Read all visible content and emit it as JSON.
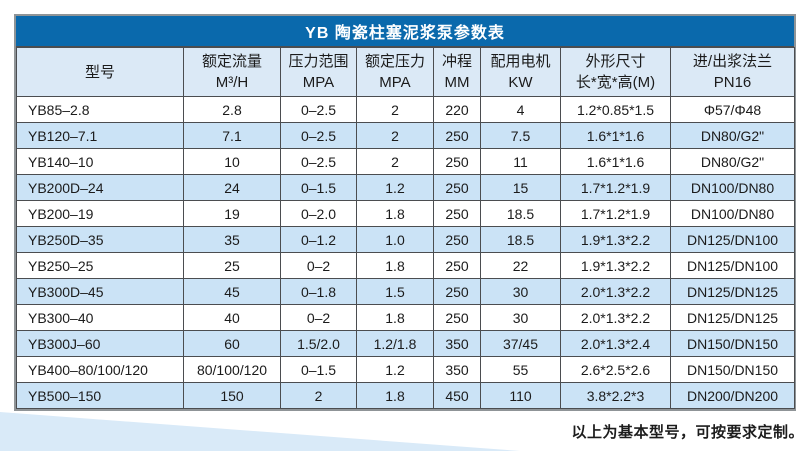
{
  "table": {
    "title": "YB 陶瓷柱塞泥浆泵参数表",
    "colors": {
      "title_bg": "#0a69ac",
      "title_text": "#ffffff",
      "header_bg": "#dbe9f6",
      "row_alt_bg": "#cbe3f6",
      "row_bg": "#ffffff",
      "border_inner": "#4b4d50",
      "border_outer": "#8f9497",
      "wedge_bg": "#d9eaf8",
      "text": "#1b1b1b"
    },
    "columns": [
      {
        "line1": "型号",
        "line2": ""
      },
      {
        "line1": "额定流量",
        "line2": "M³/H"
      },
      {
        "line1": "压力范围",
        "line2": "MPA"
      },
      {
        "line1": "额定压力",
        "line2": "MPA"
      },
      {
        "line1": "冲程",
        "line2": "MM"
      },
      {
        "line1": "配用电机",
        "line2": "KW"
      },
      {
        "line1": "外形尺寸",
        "line2": "长*宽*高(M)"
      },
      {
        "line1": "进/出浆法兰",
        "line2": "PN16"
      }
    ],
    "rows": [
      [
        "YB85–2.8",
        "2.8",
        "0–2.5",
        "2",
        "220",
        "4",
        "1.2*0.85*1.5",
        "Φ57/Φ48"
      ],
      [
        "YB120–7.1",
        "7.1",
        "0–2.5",
        "2",
        "250",
        "7.5",
        "1.6*1*1.6",
        "DN80/G2\""
      ],
      [
        "YB140–10",
        "10",
        "0–2.5",
        "2",
        "250",
        "11",
        "1.6*1*1.6",
        "DN80/G2\""
      ],
      [
        "YB200D–24",
        "24",
        "0–1.5",
        "1.2",
        "250",
        "15",
        "1.7*1.2*1.9",
        "DN100/DN80"
      ],
      [
        "YB200–19",
        "19",
        "0–2.0",
        "1.8",
        "250",
        "18.5",
        "1.7*1.2*1.9",
        "DN100/DN80"
      ],
      [
        "YB250D–35",
        "35",
        "0–1.2",
        "1.0",
        "250",
        "18.5",
        "1.9*1.3*2.2",
        "DN125/DN100"
      ],
      [
        "YB250–25",
        "25",
        "0–2",
        "1.8",
        "250",
        "22",
        "1.9*1.3*2.2",
        "DN125/DN100"
      ],
      [
        "YB300D–45",
        "45",
        "0–1.8",
        "1.5",
        "250",
        "30",
        "2.0*1.3*2.2",
        "DN125/DN125"
      ],
      [
        "YB300–40",
        "40",
        "0–2",
        "1.8",
        "250",
        "30",
        "2.0*1.3*2.2",
        "DN125/DN125"
      ],
      [
        "YB300J–60",
        "60",
        "1.5/2.0",
        "1.2/1.8",
        "350",
        "37/45",
        "2.0*1.3*2.4",
        "DN150/DN150"
      ],
      [
        "YB400–80/100/120",
        "80/100/120",
        "0–1.5",
        "1.2",
        "350",
        "55",
        "2.6*2.5*2.6",
        "DN150/DN150"
      ],
      [
        "YB500–150",
        "150",
        "2",
        "1.8",
        "450",
        "110",
        "3.8*2.2*3",
        "DN200/DN200"
      ]
    ]
  },
  "footer": {
    "note": "以上为基本型号，可按要求定制。"
  }
}
